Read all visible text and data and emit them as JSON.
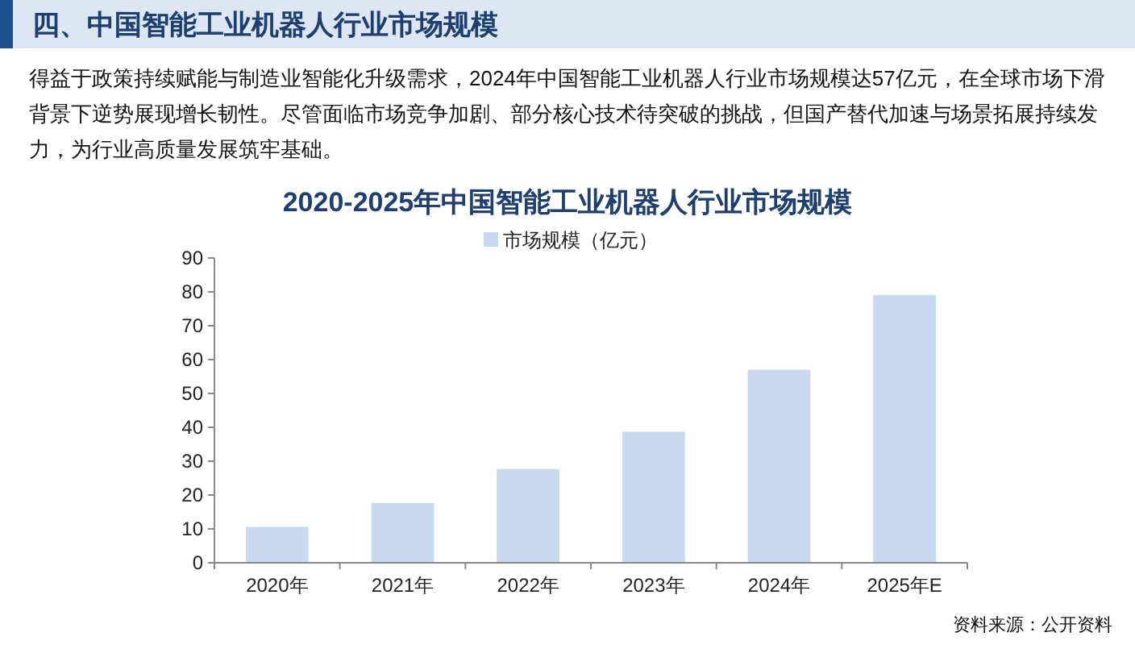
{
  "chart_data": {
    "type": "bar",
    "title": "2020-2025年中国智能工业机器人行业市场规模",
    "subtitle": "得益于政策持续赋能与制造业智能化升级需求，2024年中国智能工业机器人行业市场规模达57亿元，在全球市场下滑背景下逆势展现增长韧性。尽管面临市场竞争加剧、部分核心技术待突破的挑战，但国产替代加速与场景拓展持续发力，为行业高质量发展筑牢基础。",
    "annotations": [
      "四、中国智能工业机器人行业市场规模",
      "资料来源：公开资料"
    ],
    "categories": [
      "2020年",
      "2021年",
      "2022年",
      "2023年",
      "2024年",
      "2025年E"
    ],
    "series": [
      {
        "name": "市场规模（亿元）",
        "color": "#c9daf0",
        "values": [
          10.6,
          17.7,
          27.7,
          38.7,
          57,
          79.1
        ]
      }
    ],
    "ylim": [
      0,
      90
    ],
    "yticks": [
      0,
      10,
      20,
      30,
      40,
      50,
      60,
      70,
      80,
      90
    ],
    "legend": "top",
    "grid": false
  }
}
